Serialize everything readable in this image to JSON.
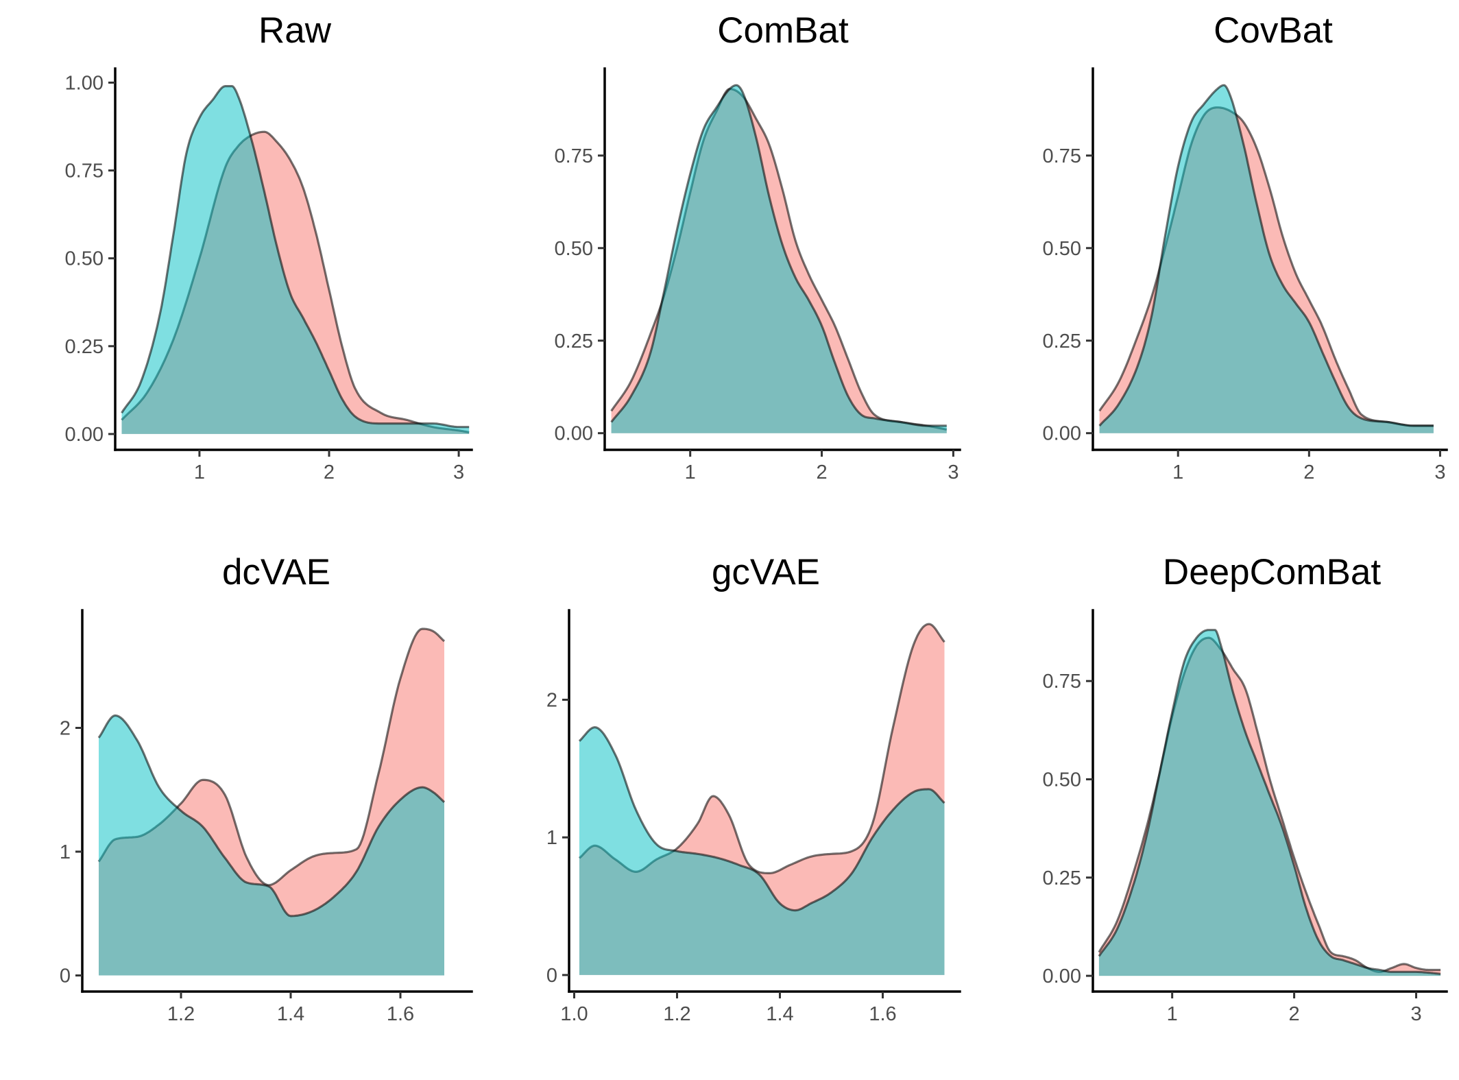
{
  "colors": {
    "group_a": "#F8766D",
    "group_b": "#00BFC4",
    "overlap": "#7EBCB9",
    "outline": "#000000"
  },
  "chart_data": [
    {
      "type": "area",
      "title": "Raw",
      "xlim": [
        0.35,
        3.1
      ],
      "ylim": [
        -0.045,
        1.04
      ],
      "xticks": [
        1,
        2,
        3
      ],
      "xtick_labels": [
        "1",
        "2",
        "3"
      ],
      "yticks": [
        0,
        0.25,
        0.5,
        0.75,
        1.0
      ],
      "ytick_labels": [
        "0.00",
        "0.25",
        "0.50",
        "0.75",
        "1.00"
      ],
      "series": [
        {
          "x": [
            0.4,
            0.6,
            0.8,
            1.0,
            1.2,
            1.3,
            1.4,
            1.5,
            1.6,
            1.7,
            1.8,
            1.9,
            2.0,
            2.1,
            2.2,
            2.4,
            2.6,
            2.8,
            3.0,
            3.08
          ],
          "y": [
            0.04,
            0.12,
            0.27,
            0.5,
            0.76,
            0.82,
            0.85,
            0.86,
            0.83,
            0.78,
            0.7,
            0.57,
            0.41,
            0.25,
            0.13,
            0.06,
            0.04,
            0.02,
            0.01,
            0.005
          ]
        },
        {
          "x": [
            0.4,
            0.55,
            0.7,
            0.8,
            0.9,
            1.0,
            1.1,
            1.2,
            1.25,
            1.3,
            1.4,
            1.5,
            1.6,
            1.7,
            1.8,
            1.9,
            2.0,
            2.1,
            2.2,
            2.4,
            2.6,
            2.8,
            3.0,
            3.08
          ],
          "y": [
            0.06,
            0.15,
            0.35,
            0.57,
            0.8,
            0.9,
            0.95,
            0.99,
            0.99,
            0.96,
            0.84,
            0.69,
            0.53,
            0.4,
            0.33,
            0.26,
            0.18,
            0.1,
            0.05,
            0.03,
            0.03,
            0.03,
            0.02,
            0.02
          ]
        }
      ]
    },
    {
      "type": "area",
      "title": "ComBat",
      "xlim": [
        0.35,
        3.05
      ],
      "ylim": [
        -0.045,
        0.985
      ],
      "xticks": [
        1,
        2,
        3
      ],
      "xtick_labels": [
        "1",
        "2",
        "3"
      ],
      "yticks": [
        0,
        0.25,
        0.5,
        0.75
      ],
      "ytick_labels": [
        "0.00",
        "0.25",
        "0.50",
        "0.75"
      ],
      "series": [
        {
          "x": [
            0.4,
            0.55,
            0.7,
            0.8,
            0.9,
            1.0,
            1.1,
            1.2,
            1.3,
            1.4,
            1.5,
            1.6,
            1.7,
            1.8,
            1.9,
            2.0,
            2.1,
            2.2,
            2.3,
            2.4,
            2.6,
            2.8,
            2.95
          ],
          "y": [
            0.06,
            0.14,
            0.27,
            0.37,
            0.5,
            0.65,
            0.79,
            0.87,
            0.93,
            0.91,
            0.85,
            0.78,
            0.66,
            0.52,
            0.43,
            0.36,
            0.29,
            0.2,
            0.11,
            0.05,
            0.03,
            0.02,
            0.01
          ]
        },
        {
          "x": [
            0.4,
            0.55,
            0.7,
            0.8,
            0.9,
            1.0,
            1.1,
            1.2,
            1.3,
            1.35,
            1.4,
            1.5,
            1.6,
            1.7,
            1.8,
            1.9,
            2.0,
            2.1,
            2.2,
            2.3,
            2.4,
            2.6,
            2.8,
            2.95
          ],
          "y": [
            0.03,
            0.1,
            0.22,
            0.38,
            0.55,
            0.7,
            0.82,
            0.88,
            0.93,
            0.94,
            0.92,
            0.8,
            0.64,
            0.51,
            0.42,
            0.36,
            0.29,
            0.19,
            0.1,
            0.05,
            0.04,
            0.03,
            0.02,
            0.02
          ]
        }
      ]
    },
    {
      "type": "area",
      "title": "CovBat",
      "xlim": [
        0.35,
        3.05
      ],
      "ylim": [
        -0.045,
        0.985
      ],
      "xticks": [
        1,
        2,
        3
      ],
      "xtick_labels": [
        "1",
        "2",
        "3"
      ],
      "yticks": [
        0,
        0.25,
        0.5,
        0.75
      ],
      "ytick_labels": [
        "0.00",
        "0.25",
        "0.50",
        "0.75"
      ],
      "series": [
        {
          "x": [
            0.4,
            0.55,
            0.7,
            0.8,
            0.9,
            1.0,
            1.1,
            1.2,
            1.3,
            1.4,
            1.5,
            1.6,
            1.7,
            1.8,
            1.9,
            2.0,
            2.1,
            2.2,
            2.3,
            2.4,
            2.6,
            2.8,
            2.95
          ],
          "y": [
            0.06,
            0.14,
            0.27,
            0.37,
            0.5,
            0.64,
            0.78,
            0.86,
            0.88,
            0.87,
            0.84,
            0.77,
            0.66,
            0.53,
            0.43,
            0.36,
            0.29,
            0.2,
            0.12,
            0.05,
            0.03,
            0.02,
            0.02
          ]
        },
        {
          "x": [
            0.4,
            0.55,
            0.7,
            0.8,
            0.9,
            1.0,
            1.1,
            1.2,
            1.3,
            1.35,
            1.4,
            1.5,
            1.6,
            1.7,
            1.8,
            1.9,
            2.0,
            2.1,
            2.2,
            2.3,
            2.4,
            2.6,
            2.8,
            2.95
          ],
          "y": [
            0.02,
            0.08,
            0.19,
            0.32,
            0.53,
            0.72,
            0.84,
            0.89,
            0.93,
            0.94,
            0.91,
            0.78,
            0.62,
            0.48,
            0.4,
            0.35,
            0.3,
            0.22,
            0.14,
            0.07,
            0.04,
            0.03,
            0.02,
            0.02
          ]
        }
      ]
    },
    {
      "type": "area",
      "title": "dcVAE",
      "xlim": [
        1.02,
        1.73
      ],
      "ylim": [
        -0.13,
        2.95
      ],
      "xticks": [
        1.2,
        1.4,
        1.6
      ],
      "xtick_labels": [
        "1.2",
        "1.4",
        "1.6"
      ],
      "yticks": [
        0,
        1,
        2
      ],
      "ytick_labels": [
        "0",
        "1",
        "2"
      ],
      "series": [
        {
          "x": [
            1.05,
            1.08,
            1.12,
            1.16,
            1.2,
            1.24,
            1.28,
            1.32,
            1.36,
            1.4,
            1.44,
            1.48,
            1.52,
            1.56,
            1.6,
            1.64,
            1.66,
            1.68
          ],
          "y": [
            0.92,
            1.1,
            1.12,
            1.22,
            1.39,
            1.58,
            1.46,
            0.95,
            0.73,
            0.85,
            0.96,
            0.99,
            1.02,
            1.63,
            2.4,
            2.8,
            2.78,
            2.7
          ]
        },
        {
          "x": [
            1.05,
            1.08,
            1.12,
            1.16,
            1.2,
            1.24,
            1.28,
            1.32,
            1.36,
            1.4,
            1.44,
            1.48,
            1.52,
            1.56,
            1.6,
            1.64,
            1.66,
            1.68
          ],
          "y": [
            1.92,
            2.1,
            1.9,
            1.52,
            1.33,
            1.2,
            0.95,
            0.75,
            0.72,
            0.48,
            0.52,
            0.64,
            0.84,
            1.2,
            1.42,
            1.52,
            1.48,
            1.4
          ]
        }
      ]
    },
    {
      "type": "area",
      "title": "gcVAE",
      "xlim": [
        0.99,
        1.75
      ],
      "ylim": [
        -0.12,
        2.65
      ],
      "xticks": [
        1.0,
        1.2,
        1.4,
        1.6
      ],
      "xtick_labels": [
        "1.0",
        "1.2",
        "1.4",
        "1.6"
      ],
      "yticks": [
        0,
        1,
        2
      ],
      "ytick_labels": [
        "0",
        "1",
        "2"
      ],
      "series": [
        {
          "x": [
            1.01,
            1.04,
            1.08,
            1.12,
            1.16,
            1.2,
            1.24,
            1.27,
            1.3,
            1.34,
            1.38,
            1.42,
            1.46,
            1.5,
            1.54,
            1.58,
            1.62,
            1.66,
            1.69,
            1.72
          ],
          "y": [
            0.85,
            0.94,
            0.84,
            0.75,
            0.84,
            0.92,
            1.1,
            1.3,
            1.17,
            0.8,
            0.74,
            0.8,
            0.86,
            0.88,
            0.9,
            1.1,
            1.8,
            2.4,
            2.55,
            2.42
          ]
        },
        {
          "x": [
            1.01,
            1.04,
            1.08,
            1.12,
            1.16,
            1.2,
            1.24,
            1.28,
            1.32,
            1.36,
            1.4,
            1.43,
            1.46,
            1.5,
            1.54,
            1.58,
            1.62,
            1.66,
            1.69,
            1.72
          ],
          "y": [
            1.7,
            1.8,
            1.6,
            1.2,
            0.95,
            0.9,
            0.88,
            0.85,
            0.8,
            0.73,
            0.52,
            0.47,
            0.52,
            0.6,
            0.74,
            1.0,
            1.2,
            1.33,
            1.35,
            1.25
          ]
        }
      ]
    },
    {
      "type": "area",
      "title": "DeepComBat",
      "xlim": [
        0.35,
        3.25
      ],
      "ylim": [
        -0.04,
        0.93
      ],
      "xticks": [
        1,
        2,
        3
      ],
      "xtick_labels": [
        "1",
        "2",
        "3"
      ],
      "yticks": [
        0,
        0.25,
        0.5,
        0.75
      ],
      "ytick_labels": [
        "0.00",
        "0.25",
        "0.50",
        "0.75"
      ],
      "series": [
        {
          "x": [
            0.4,
            0.55,
            0.7,
            0.8,
            0.9,
            1.0,
            1.1,
            1.2,
            1.3,
            1.4,
            1.5,
            1.6,
            1.7,
            1.8,
            1.9,
            2.0,
            2.1,
            2.2,
            2.3,
            2.4,
            2.5,
            2.6,
            2.7,
            2.8,
            2.9,
            3.0,
            3.1,
            3.2
          ],
          "y": [
            0.06,
            0.14,
            0.28,
            0.39,
            0.52,
            0.66,
            0.77,
            0.84,
            0.86,
            0.83,
            0.78,
            0.73,
            0.62,
            0.5,
            0.4,
            0.3,
            0.21,
            0.13,
            0.06,
            0.05,
            0.04,
            0.02,
            0.01,
            0.02,
            0.03,
            0.02,
            0.015,
            0.015
          ]
        },
        {
          "x": [
            0.4,
            0.55,
            0.7,
            0.8,
            0.9,
            1.0,
            1.1,
            1.2,
            1.3,
            1.35,
            1.4,
            1.5,
            1.6,
            1.7,
            1.8,
            1.9,
            2.0,
            2.1,
            2.2,
            2.3,
            2.4,
            2.5,
            2.6,
            2.7,
            2.8,
            2.9,
            3.0,
            3.1,
            3.2
          ],
          "y": [
            0.05,
            0.12,
            0.25,
            0.37,
            0.52,
            0.67,
            0.8,
            0.86,
            0.88,
            0.88,
            0.84,
            0.72,
            0.62,
            0.54,
            0.46,
            0.38,
            0.28,
            0.17,
            0.09,
            0.05,
            0.04,
            0.03,
            0.02,
            0.015,
            0.01,
            0.01,
            0.01,
            0.008,
            0.005
          ]
        }
      ]
    }
  ]
}
